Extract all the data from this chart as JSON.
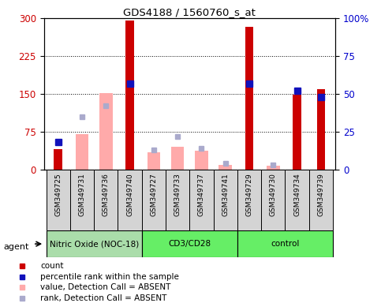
{
  "title": "GDS4188 / 1560760_s_at",
  "samples": [
    "GSM349725",
    "GSM349731",
    "GSM349736",
    "GSM349740",
    "GSM349727",
    "GSM349733",
    "GSM349737",
    "GSM349741",
    "GSM349729",
    "GSM349730",
    "GSM349734",
    "GSM349739"
  ],
  "groups": [
    {
      "name": "Nitric Oxide (NOC-18)",
      "start": 0,
      "end": 3
    },
    {
      "name": "CD3/CD28",
      "start": 4,
      "end": 7
    },
    {
      "name": "control",
      "start": 8,
      "end": 11
    }
  ],
  "count": [
    40,
    null,
    null,
    295,
    null,
    null,
    null,
    null,
    283,
    null,
    148,
    160
  ],
  "percentile_rank_pct": [
    18,
    null,
    null,
    57,
    null,
    null,
    null,
    null,
    57,
    null,
    52,
    48
  ],
  "value_absent": [
    null,
    70,
    152,
    null,
    35,
    45,
    38,
    10,
    null,
    8,
    null,
    null
  ],
  "rank_absent_pct": [
    null,
    35,
    42,
    null,
    13,
    22,
    14,
    4,
    null,
    3,
    null,
    null
  ],
  "ylim_left": [
    0,
    300
  ],
  "ylim_right": [
    0,
    100
  ],
  "yticks_left": [
    0,
    75,
    150,
    225,
    300
  ],
  "yticks_right": [
    0,
    25,
    50,
    75,
    100
  ],
  "group_colors": [
    "#aaddaa",
    "#66ee66",
    "#66ee66"
  ],
  "colors": {
    "count": "#cc0000",
    "percentile_rank": "#1111bb",
    "value_absent": "#ffaaaa",
    "rank_absent": "#aaaacc",
    "left_tick_color": "#cc0000",
    "right_tick_color": "#0000cc"
  },
  "legend_items": [
    {
      "label": "count",
      "color": "#cc0000"
    },
    {
      "label": "percentile rank within the sample",
      "color": "#1111bb"
    },
    {
      "label": "value, Detection Call = ABSENT",
      "color": "#ffaaaa"
    },
    {
      "label": "rank, Detection Call = ABSENT",
      "color": "#aaaacc"
    }
  ]
}
